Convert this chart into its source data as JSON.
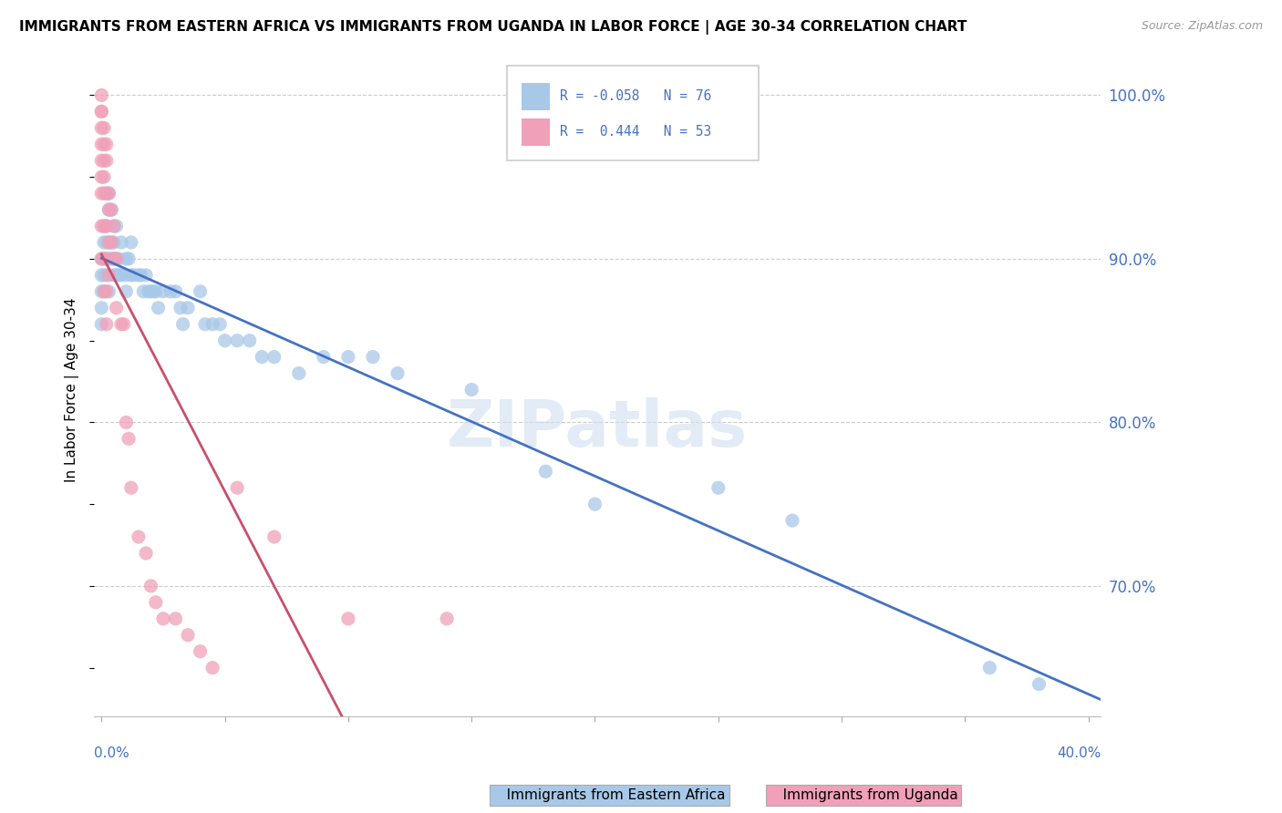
{
  "title": "IMMIGRANTS FROM EASTERN AFRICA VS IMMIGRANTS FROM UGANDA IN LABOR FORCE | AGE 30-34 CORRELATION CHART",
  "source": "Source: ZipAtlas.com",
  "ylabel": "In Labor Force | Age 30-34",
  "color_blue": "#A8C8E8",
  "color_pink": "#F0A0B8",
  "color_blue_line": "#4472C4",
  "color_pink_line": "#C8506A",
  "watermark_color": "#D0DFF0",
  "blue_x": [
    0.0,
    0.0,
    0.0,
    0.0,
    0.0,
    0.001,
    0.001,
    0.001,
    0.001,
    0.001,
    0.002,
    0.002,
    0.002,
    0.002,
    0.003,
    0.003,
    0.003,
    0.003,
    0.003,
    0.004,
    0.004,
    0.004,
    0.005,
    0.005,
    0.005,
    0.005,
    0.006,
    0.006,
    0.006,
    0.007,
    0.007,
    0.008,
    0.008,
    0.01,
    0.01,
    0.01,
    0.011,
    0.012,
    0.012,
    0.013,
    0.015,
    0.016,
    0.017,
    0.018,
    0.019,
    0.02,
    0.021,
    0.022,
    0.023,
    0.025,
    0.028,
    0.03,
    0.032,
    0.033,
    0.035,
    0.04,
    0.042,
    0.045,
    0.048,
    0.05,
    0.055,
    0.06,
    0.065,
    0.07,
    0.08,
    0.09,
    0.1,
    0.11,
    0.12,
    0.15,
    0.18,
    0.2,
    0.25,
    0.28,
    0.36,
    0.38
  ],
  "blue_y": [
    0.88,
    0.89,
    0.87,
    0.86,
    0.9,
    0.92,
    0.91,
    0.9,
    0.89,
    0.88,
    0.94,
    0.92,
    0.91,
    0.89,
    0.94,
    0.93,
    0.91,
    0.9,
    0.88,
    0.93,
    0.91,
    0.9,
    0.92,
    0.91,
    0.9,
    0.89,
    0.92,
    0.9,
    0.89,
    0.9,
    0.89,
    0.91,
    0.89,
    0.9,
    0.89,
    0.88,
    0.9,
    0.91,
    0.89,
    0.89,
    0.89,
    0.89,
    0.88,
    0.89,
    0.88,
    0.88,
    0.88,
    0.88,
    0.87,
    0.88,
    0.88,
    0.88,
    0.87,
    0.86,
    0.87,
    0.88,
    0.86,
    0.86,
    0.86,
    0.85,
    0.85,
    0.85,
    0.84,
    0.84,
    0.83,
    0.84,
    0.84,
    0.84,
    0.83,
    0.82,
    0.77,
    0.75,
    0.76,
    0.74,
    0.65,
    0.64
  ],
  "pink_x": [
    0.0,
    0.0,
    0.0,
    0.0,
    0.0,
    0.0,
    0.0,
    0.0,
    0.0,
    0.0,
    0.001,
    0.001,
    0.001,
    0.001,
    0.001,
    0.001,
    0.001,
    0.001,
    0.002,
    0.002,
    0.002,
    0.002,
    0.002,
    0.002,
    0.002,
    0.003,
    0.003,
    0.003,
    0.003,
    0.004,
    0.004,
    0.005,
    0.005,
    0.006,
    0.006,
    0.008,
    0.009,
    0.01,
    0.011,
    0.012,
    0.015,
    0.018,
    0.02,
    0.022,
    0.025,
    0.03,
    0.035,
    0.04,
    0.045,
    0.055,
    0.07,
    0.1,
    0.14
  ],
  "pink_y": [
    1.0,
    0.99,
    0.99,
    0.98,
    0.97,
    0.96,
    0.95,
    0.94,
    0.92,
    0.9,
    0.98,
    0.97,
    0.96,
    0.95,
    0.94,
    0.92,
    0.9,
    0.88,
    0.97,
    0.96,
    0.94,
    0.92,
    0.9,
    0.88,
    0.86,
    0.94,
    0.93,
    0.91,
    0.89,
    0.93,
    0.91,
    0.92,
    0.9,
    0.9,
    0.87,
    0.86,
    0.86,
    0.8,
    0.79,
    0.76,
    0.73,
    0.72,
    0.7,
    0.69,
    0.68,
    0.68,
    0.67,
    0.66,
    0.65,
    0.76,
    0.73,
    0.68,
    0.68
  ],
  "xlim": [
    -0.003,
    0.405
  ],
  "ylim": [
    0.62,
    1.02
  ],
  "yticks": [
    1.0,
    0.9,
    0.8,
    0.7
  ],
  "ytick_labels": [
    "100.0%",
    "90.0%",
    "80.0%",
    "70.0%"
  ],
  "gridline_y": [
    1.0,
    0.9,
    0.8,
    0.7
  ],
  "xtick_positions": [
    0.0,
    0.05,
    0.1,
    0.15,
    0.2,
    0.25,
    0.3,
    0.35,
    0.4
  ]
}
